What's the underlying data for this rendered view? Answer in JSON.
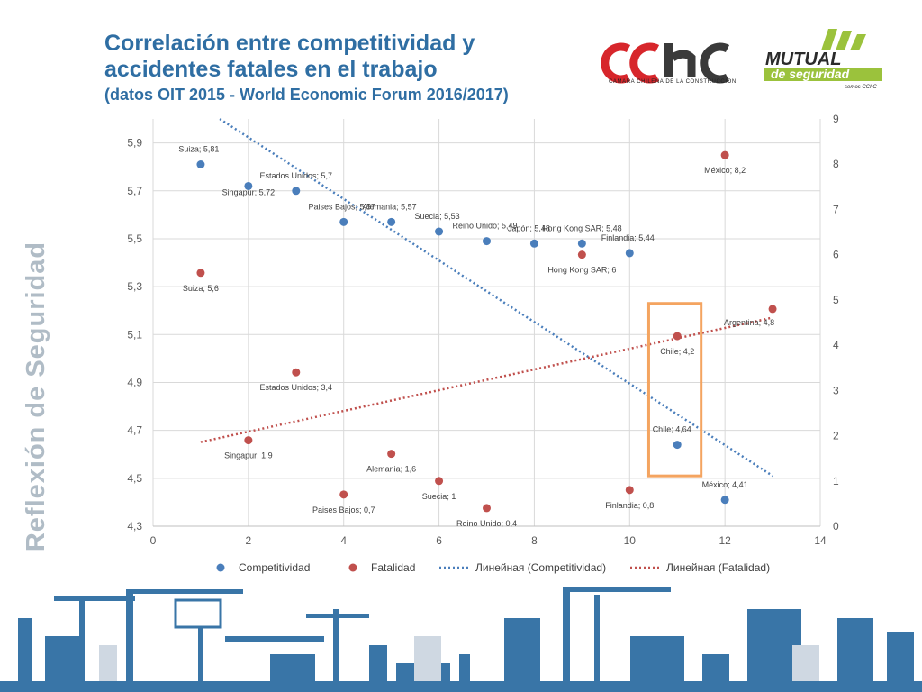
{
  "header": {
    "title": "Correlación entre competitividad y accidentes fatales en el trabajo",
    "subtitle": "(datos OIT 2015 - World Economic Forum 2016/2017)",
    "side_label": "Reflexión de Seguridad"
  },
  "logos": {
    "cchc_caption": "CAMARA CHILENA DE LA CONSTRUCCION",
    "mutual_word": "MUTUAL",
    "mutual_tagline": "de seguridad",
    "mutual_sub": "somos CChC"
  },
  "chart_data": {
    "type": "scatter",
    "xlim": [
      0,
      14
    ],
    "x_ticks": [
      "0",
      "2",
      "4",
      "6",
      "8",
      "10",
      "12",
      "14"
    ],
    "y_left_lim": [
      4.3,
      6.0
    ],
    "y_left_ticks": [
      "4,3",
      "4,5",
      "4,7",
      "4,9",
      "5,1",
      "5,3",
      "5,5",
      "5,7",
      "5,9"
    ],
    "y_right_lim": [
      0,
      9
    ],
    "y_right_ticks": [
      "0",
      "1",
      "2",
      "3",
      "4",
      "5",
      "6",
      "7",
      "8",
      "9"
    ],
    "grid": true,
    "legend_position": "bottom",
    "series": [
      {
        "name": "Competitividad",
        "axis": "left",
        "color": "#4a7ebb",
        "points": [
          {
            "x": 1,
            "y": 5.81,
            "label": "Suiza; 5,81"
          },
          {
            "x": 2,
            "y": 5.72,
            "label": "Singapur; 5,72"
          },
          {
            "x": 3,
            "y": 5.7,
            "label": "Estados Unidos; 5,7"
          },
          {
            "x": 4,
            "y": 5.57,
            "label": "Paises Bajos; 5,57"
          },
          {
            "x": 5,
            "y": 5.57,
            "label": "Alemania; 5,57"
          },
          {
            "x": 6,
            "y": 5.53,
            "label": "Suecia; 5,53"
          },
          {
            "x": 7,
            "y": 5.49,
            "label": "Reino Unido; 5,49"
          },
          {
            "x": 8,
            "y": 5.48,
            "label": "Japón; 5,48"
          },
          {
            "x": 9,
            "y": 5.48,
            "label": "Hong Kong SAR; 5,48"
          },
          {
            "x": 10,
            "y": 5.44,
            "label": "Finlandia; 5,44"
          },
          {
            "x": 11,
            "y": 4.64,
            "label": "Chile; 4,64"
          },
          {
            "x": 12,
            "y": 4.41,
            "label": "México; 4,41"
          }
        ]
      },
      {
        "name": "Fatalidad",
        "axis": "right",
        "color": "#c0504d",
        "points": [
          {
            "x": 1,
            "y": 5.6,
            "label": "Suiza; 5,6"
          },
          {
            "x": 2,
            "y": 1.9,
            "label": "Singapur; 1,9"
          },
          {
            "x": 3,
            "y": 3.4,
            "label": "Estados Unidos; 3,4"
          },
          {
            "x": 4,
            "y": 0.7,
            "label": "Paises Bajos; 0,7"
          },
          {
            "x": 5,
            "y": 1.6,
            "label": "Alemania; 1,6"
          },
          {
            "x": 6,
            "y": 1,
            "label": "Suecia; 1"
          },
          {
            "x": 7,
            "y": 0.4,
            "label": "Reino Unido; 0,4"
          },
          {
            "x": 9,
            "y": 6,
            "label": "Hong Kong SAR; 6"
          },
          {
            "x": 10,
            "y": 0.8,
            "label": "Finlandia; 0,8"
          },
          {
            "x": 11,
            "y": 4.2,
            "label": "Chile; 4,2"
          },
          {
            "x": 12,
            "y": 8.2,
            "label": "México; 8,2"
          },
          {
            "x": 13,
            "y": 4.8,
            "label": "Argentina; 4,8"
          }
        ]
      }
    ],
    "trendlines": [
      {
        "name": "Линейная (Competitividad)",
        "axis": "left",
        "color": "#4a7ebb",
        "x0": 1.4,
        "y0": 6.0,
        "x1": 13,
        "y1": 4.51
      },
      {
        "name": "Линейная (Fatalidad)",
        "axis": "right",
        "color": "#c0504d",
        "x0": 1,
        "y0": 1.86,
        "x1": 13,
        "y1": 4.61
      }
    ],
    "highlight": {
      "x0": 10.4,
      "x1": 11.5,
      "y0_left": 4.51,
      "y1_left": 5.23,
      "color": "#f4a460"
    }
  }
}
